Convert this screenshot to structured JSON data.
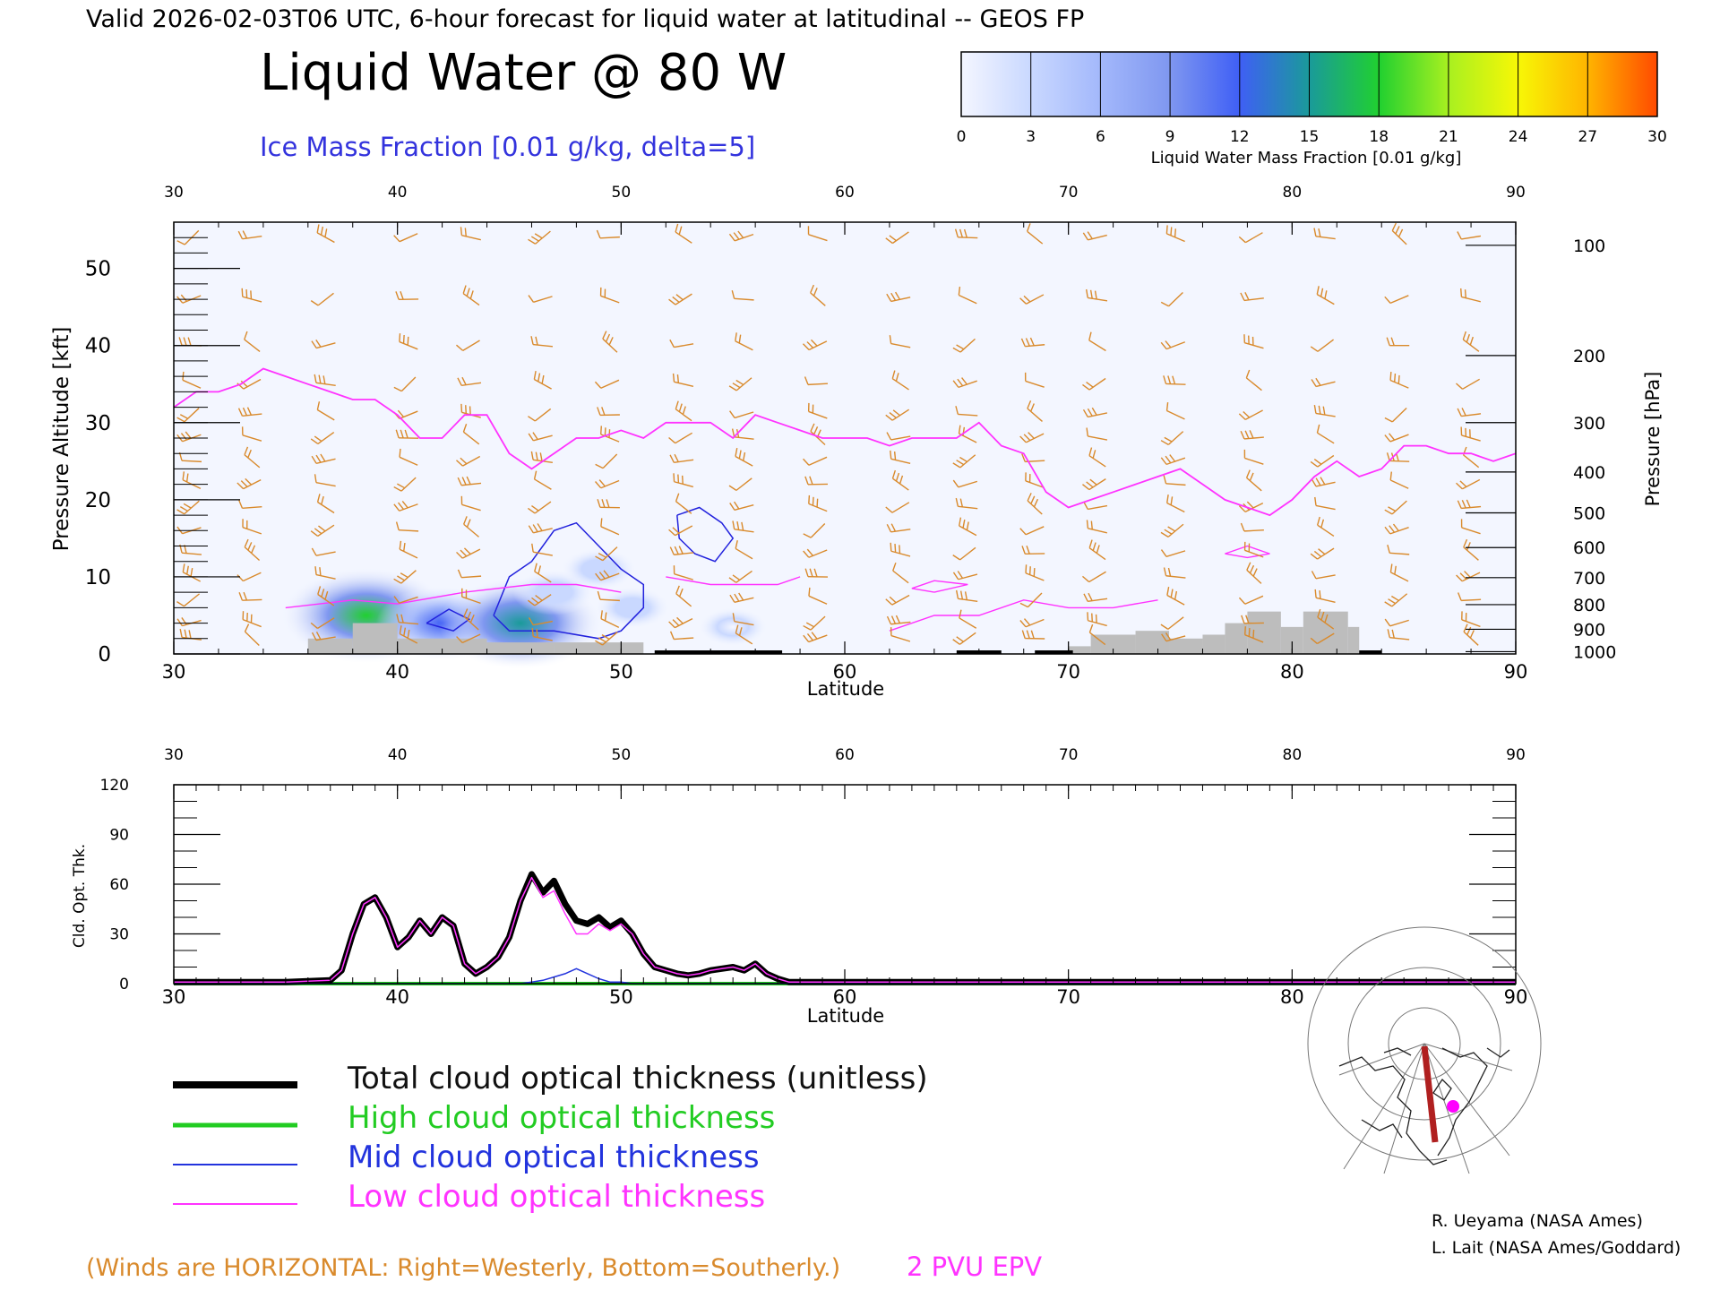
{
  "header": {
    "valid_line": "Valid 2026-02-03T06 UTC, 6-hour forecast for liquid water at latitudinal -- GEOS FP",
    "title": "Liquid Water @ 80 W",
    "subtitle": "Ice Mass Fraction [0.01 g/kg, delta=5]"
  },
  "colorbar": {
    "ticks": [
      "0",
      "3",
      "6",
      "9",
      "12",
      "15",
      "18",
      "21",
      "24",
      "27",
      "30"
    ],
    "label": "Liquid Water Mass Fraction [0.01 g/kg]",
    "colors": [
      "#f4f6ff",
      "#c9d8ff",
      "#a3b8fb",
      "#7f97f0",
      "#3f5ff5",
      "#1a9a9a",
      "#20d030",
      "#a8f020",
      "#f7f706",
      "#ffb400",
      "#ff4a00"
    ]
  },
  "colors": {
    "wind_barb": "#d98a2c",
    "epv": "#ff33ff",
    "ice": "#2222dd",
    "terrain": "#bdbdbd",
    "total": "#000000",
    "high": "#22cc22",
    "mid": "#2233dd",
    "low": "#ff33ff"
  },
  "chart_data": [
    {
      "type": "heatmap",
      "title": "Liquid Water @ 80 W",
      "subtitle": "Ice Mass Fraction [0.01 g/kg, delta=5]",
      "xlabel": "Latitude",
      "ylabel_left": "Pressure Altitude [kft]",
      "ylabel_right": "Pressure [hPa]",
      "xlim": [
        30,
        90
      ],
      "ylim": [
        0,
        56
      ],
      "x_ticks": [
        "30",
        "40",
        "50",
        "60",
        "70",
        "80",
        "90"
      ],
      "y_ticks": [
        "0",
        "10",
        "20",
        "30",
        "40",
        "50"
      ],
      "pressure_ticks": [
        {
          "label": "100",
          "kft": 53
        },
        {
          "label": "200",
          "kft": 38.7
        },
        {
          "label": "300",
          "kft": 30
        },
        {
          "label": "400",
          "kft": 23.6
        },
        {
          "label": "500",
          "kft": 18.3
        },
        {
          "label": "600",
          "kft": 13.8
        },
        {
          "label": "700",
          "kft": 9.9
        },
        {
          "label": "800",
          "kft": 6.4
        },
        {
          "label": "900",
          "kft": 3.2
        },
        {
          "label": "1000",
          "kft": 0.3
        }
      ],
      "epv_2pvu": {
        "lat": [
          30,
          31,
          32,
          33,
          34,
          35,
          36,
          37,
          38,
          39,
          40,
          41,
          42,
          43,
          44,
          45,
          46,
          47,
          48,
          49,
          50,
          51,
          52,
          53,
          54,
          55,
          56,
          57,
          58,
          59,
          60,
          61,
          62,
          63,
          64,
          65,
          66,
          67,
          68,
          69,
          70,
          71,
          72,
          73,
          74,
          75,
          76,
          77,
          78,
          79,
          80,
          81,
          82,
          83,
          84,
          85,
          86,
          87,
          88,
          89,
          90
        ],
        "kft": [
          32,
          34,
          34,
          35,
          37,
          36,
          35,
          34,
          33,
          33,
          31,
          28,
          28,
          31,
          31,
          26,
          24,
          26,
          28,
          28,
          29,
          28,
          30,
          30,
          30,
          28,
          31,
          30,
          29,
          28,
          28,
          28,
          27,
          28,
          28,
          28,
          30,
          27,
          26,
          21,
          19,
          20,
          21,
          22,
          23,
          24,
          22,
          20,
          19,
          18,
          20,
          23,
          25,
          23,
          24,
          27,
          27,
          26,
          26,
          25,
          26
        ]
      },
      "liquid_water_cells": [
        {
          "lat": 38.6,
          "kft": 5.0,
          "value": 17
        },
        {
          "lat": 42.0,
          "kft": 4.0,
          "value": 11
        },
        {
          "lat": 45.5,
          "kft": 4.0,
          "value": 16
        },
        {
          "lat": 47.0,
          "kft": 8.0,
          "value": 3
        },
        {
          "lat": 49.0,
          "kft": 11.0,
          "value": 2
        },
        {
          "lat": 50.5,
          "kft": 6.0,
          "value": 2
        },
        {
          "lat": 55.0,
          "kft": 3.5,
          "value": 1
        }
      ],
      "terrain": [
        {
          "lat0": 36,
          "lat1": 38,
          "kft": 2
        },
        {
          "lat0": 38,
          "lat1": 40,
          "kft": 4
        },
        {
          "lat0": 40,
          "lat1": 44,
          "kft": 2
        },
        {
          "lat0": 44,
          "lat1": 47,
          "kft": 1.5
        },
        {
          "lat0": 47,
          "lat1": 51,
          "kft": 1.5
        },
        {
          "lat0": 70,
          "lat1": 71,
          "kft": 1
        },
        {
          "lat0": 71,
          "lat1": 73,
          "kft": 2.5
        },
        {
          "lat0": 73,
          "lat1": 74.5,
          "kft": 3
        },
        {
          "lat0": 74.5,
          "lat1": 76,
          "kft": 2
        },
        {
          "lat0": 76,
          "lat1": 77,
          "kft": 2.5
        },
        {
          "lat0": 77,
          "lat1": 78,
          "kft": 4
        },
        {
          "lat0": 78,
          "lat1": 79.5,
          "kft": 5.5
        },
        {
          "lat0": 79.5,
          "lat1": 80.5,
          "kft": 3.5
        },
        {
          "lat0": 80.5,
          "lat1": 82.5,
          "kft": 5.5
        },
        {
          "lat0": 82.5,
          "lat1": 83,
          "kft": 3.5
        }
      ]
    },
    {
      "type": "line",
      "xlabel": "Latitude",
      "ylabel": "Cld. Opt. Thk.",
      "xlim": [
        30,
        90
      ],
      "ylim": [
        0,
        120
      ],
      "x_ticks": [
        "30",
        "40",
        "50",
        "60",
        "70",
        "80",
        "90"
      ],
      "y_ticks": [
        "0",
        "30",
        "60",
        "90",
        "120"
      ],
      "x": [
        30,
        35,
        37,
        37.5,
        38,
        38.5,
        39,
        39.5,
        40,
        40.5,
        41,
        41.5,
        42,
        42.5,
        43,
        43.5,
        44,
        44.5,
        45,
        45.5,
        46,
        46.5,
        47,
        47.5,
        48,
        48.5,
        49,
        49.5,
        50,
        50.5,
        51,
        51.5,
        52,
        52.5,
        53,
        53.5,
        54,
        54.5,
        55,
        55.5,
        56,
        56.5,
        57,
        57.5,
        58,
        60,
        65,
        70,
        75,
        80,
        85,
        90
      ],
      "series": [
        {
          "name": "Total cloud optical thickness (unitless)",
          "values": [
            1,
            1,
            2,
            8,
            30,
            48,
            52,
            40,
            22,
            28,
            38,
            30,
            40,
            35,
            12,
            6,
            10,
            16,
            28,
            50,
            66,
            55,
            62,
            48,
            38,
            36,
            40,
            34,
            38,
            30,
            18,
            10,
            8,
            6,
            5,
            6,
            8,
            9,
            10,
            8,
            12,
            6,
            3,
            1,
            1,
            1,
            1,
            1,
            1,
            1,
            1,
            1
          ]
        },
        {
          "name": "High cloud optical thickness",
          "values": [
            0,
            0,
            0,
            0,
            0,
            0,
            0,
            0,
            0,
            0,
            0,
            0,
            0,
            0,
            0,
            0,
            0,
            0,
            0,
            0,
            0,
            0,
            0,
            0,
            0,
            0,
            0,
            0,
            0,
            0,
            0,
            0,
            0,
            0,
            0,
            0,
            0,
            0,
            0,
            0,
            0,
            0,
            0,
            0,
            0,
            0,
            0,
            0,
            0,
            0,
            0,
            0
          ]
        },
        {
          "name": "Mid cloud optical thickness",
          "values": [
            0,
            0,
            0,
            0,
            0,
            0,
            0,
            0,
            0,
            0,
            0,
            0,
            0,
            0,
            0,
            0,
            0,
            0,
            0,
            0,
            1,
            2,
            4,
            6,
            9,
            6,
            3,
            1,
            1,
            0,
            0,
            0,
            0,
            0,
            0,
            0,
            0,
            0,
            0,
            0,
            0,
            0,
            0,
            0,
            0,
            0,
            0,
            0,
            0,
            0,
            0,
            0
          ]
        },
        {
          "name": "Low cloud optical thickness",
          "values": [
            1,
            1,
            2,
            8,
            30,
            48,
            52,
            40,
            22,
            28,
            38,
            30,
            40,
            35,
            12,
            6,
            10,
            16,
            28,
            50,
            64,
            52,
            56,
            42,
            30,
            30,
            36,
            32,
            36,
            30,
            18,
            10,
            8,
            6,
            5,
            6,
            8,
            9,
            10,
            8,
            12,
            6,
            3,
            1,
            1,
            1,
            1,
            1,
            1,
            1,
            1,
            1
          ]
        }
      ]
    }
  ],
  "legend": {
    "total": "Total cloud optical thickness (unitless)",
    "high": "High cloud optical thickness",
    "mid": "Mid cloud optical thickness",
    "low": "Low cloud optical thickness"
  },
  "footer": {
    "winds_note": "(Winds are HORIZONTAL: Right=Westerly, Bottom=Southerly.)",
    "epv_label": "2 PVU EPV",
    "credit1": "R. Ueyama (NASA Ames)",
    "credit2": "L. Lait (NASA Ames/Goddard)"
  }
}
